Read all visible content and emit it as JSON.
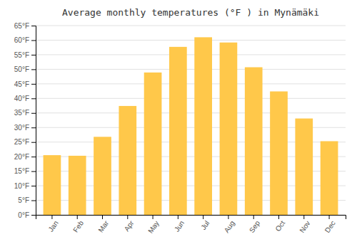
{
  "chart_data": {
    "type": "bar",
    "title": "Average monthly temperatures (°F ) in Mynämäki",
    "categories": [
      "Jan",
      "Feb",
      "Mar",
      "Apr",
      "May",
      "Jun",
      "Jul",
      "Aug",
      "Sep",
      "Oct",
      "Nov",
      "Dec"
    ],
    "values": [
      20.5,
      20.3,
      26.8,
      37.4,
      48.9,
      57.7,
      61.0,
      59.2,
      50.7,
      42.4,
      33.1,
      25.3
    ],
    "color": "#FFC84A",
    "ylim": [
      0,
      65
    ],
    "yticks": [
      {
        "value": 0,
        "label": "0°F"
      },
      {
        "value": 5,
        "label": "5°F"
      },
      {
        "value": 10,
        "label": "10°F"
      },
      {
        "value": 15,
        "label": "15°F"
      },
      {
        "value": 20,
        "label": "20°F"
      },
      {
        "value": 25,
        "label": "25°F"
      },
      {
        "value": 30,
        "label": "30°F"
      },
      {
        "value": 35,
        "label": "35°F"
      },
      {
        "value": 40,
        "label": "40°F"
      },
      {
        "value": 45,
        "label": "45°F"
      },
      {
        "value": 50,
        "label": "50°F"
      },
      {
        "value": 55,
        "label": "55°F"
      },
      {
        "value": 60,
        "label": "60°F"
      },
      {
        "value": 65,
        "label": "65°F"
      }
    ],
    "grid": true
  }
}
